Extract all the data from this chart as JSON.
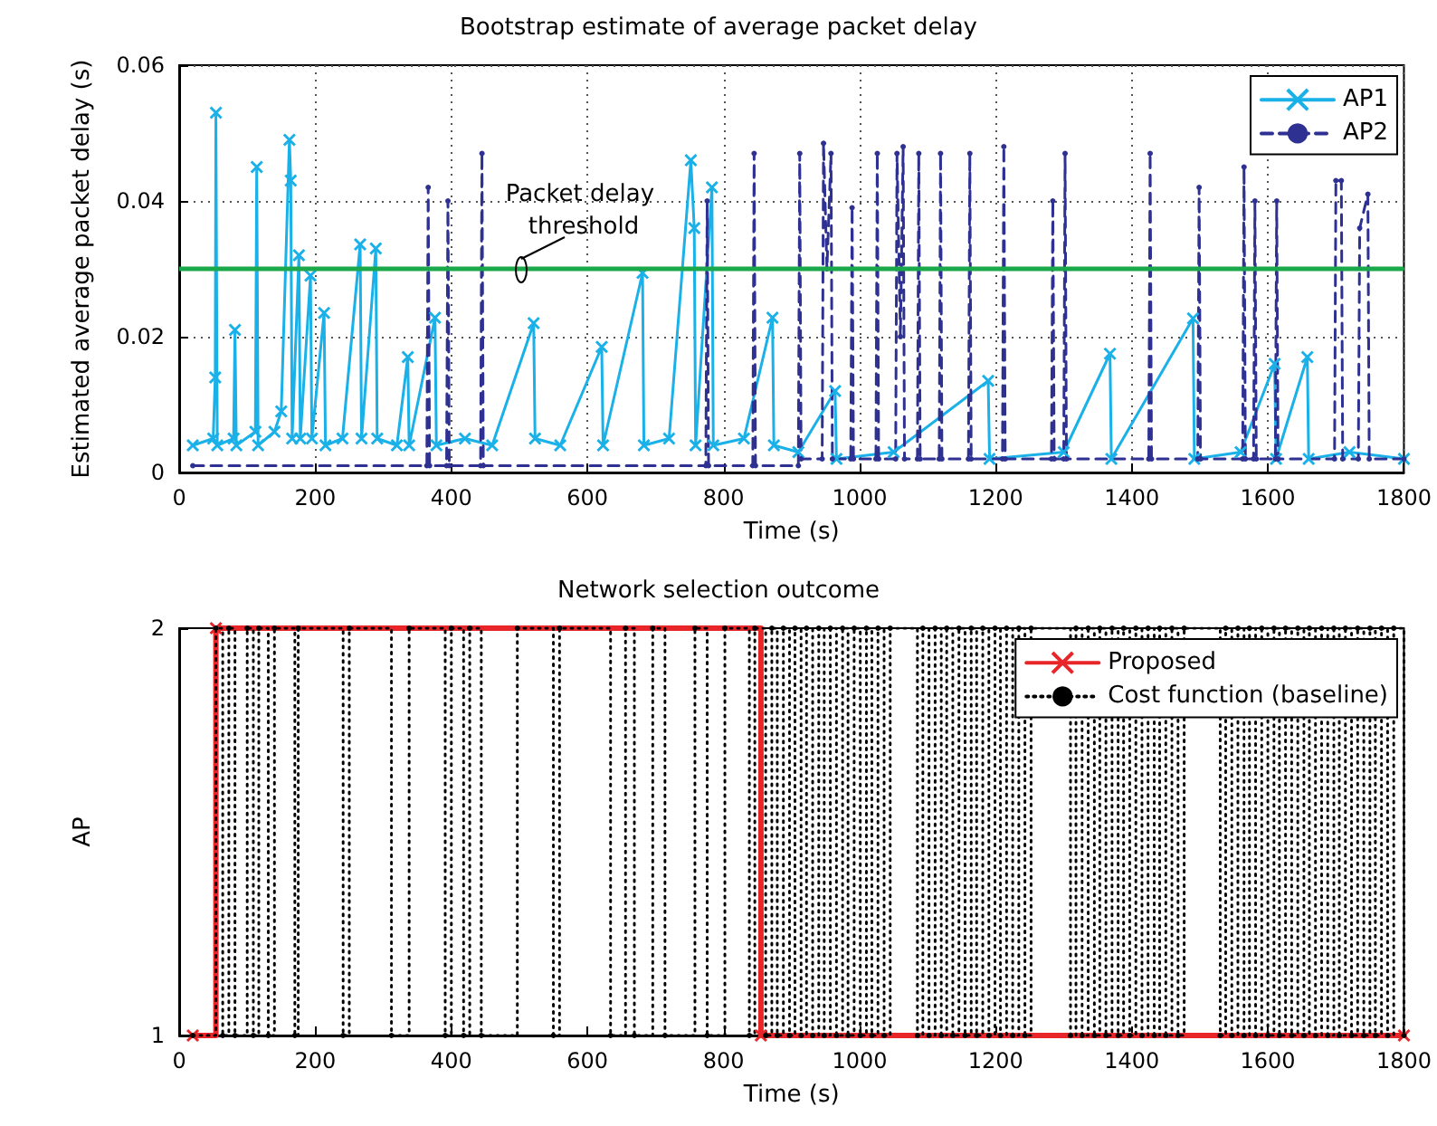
{
  "chart_data": [
    {
      "type": "line",
      "title": "Bootstrap estimate of average packet delay",
      "xlabel": "Time (s)",
      "ylabel": "Estimated average packet delay (s)",
      "xlim": [
        0,
        1800
      ],
      "xticks": [
        0,
        200,
        400,
        600,
        800,
        1000,
        1200,
        1400,
        1600,
        1800
      ],
      "ylim": [
        0,
        0.06
      ],
      "yticks": [
        0,
        0.02,
        0.04,
        0.06
      ],
      "grid": true,
      "legend": "top right",
      "ref_lines": [
        {
          "axis": "y",
          "value": 0.03,
          "label": "Packet delay threshold",
          "color": "#1aa84a"
        }
      ],
      "series": [
        {
          "name": "AP1",
          "color": "#1ab0e8",
          "marker": "cross",
          "line_style": "solid",
          "x": [
            20,
            50,
            53,
            54,
            56,
            80,
            82,
            84,
            112,
            114,
            116,
            140,
            150,
            162,
            164,
            166,
            176,
            178,
            193,
            195,
            213,
            215,
            240,
            266,
            268,
            289,
            291,
            320,
            336,
            338,
            376,
            378,
            420,
            460,
            521,
            523,
            560,
            621,
            623,
            681,
            683,
            720,
            752,
            757,
            759,
            783,
            785,
            830,
            872,
            874,
            910,
            964,
            966,
            1050,
            1189,
            1191,
            1300,
            1368,
            1370,
            1490,
            1492,
            1560,
            1610,
            1612,
            1658,
            1660,
            1720,
            1800
          ],
          "values": [
            0.004,
            0.005,
            0.014,
            0.053,
            0.004,
            0.005,
            0.021,
            0.004,
            0.006,
            0.045,
            0.004,
            0.006,
            0.009,
            0.049,
            0.043,
            0.005,
            0.032,
            0.005,
            0.029,
            0.005,
            0.0235,
            0.004,
            0.005,
            0.0336,
            0.005,
            0.033,
            0.005,
            0.004,
            0.017,
            0.004,
            0.0228,
            0.004,
            0.005,
            0.004,
            0.022,
            0.005,
            0.004,
            0.0185,
            0.004,
            0.0294,
            0.004,
            0.005,
            0.046,
            0.036,
            0.004,
            0.042,
            0.004,
            0.005,
            0.0228,
            0.004,
            0.003,
            0.012,
            0.002,
            0.003,
            0.0135,
            0.002,
            0.003,
            0.0175,
            0.002,
            0.0227,
            0.002,
            0.003,
            0.016,
            0.002,
            0.017,
            0.002,
            0.003,
            0.002
          ]
        },
        {
          "name": "AP2",
          "color": "#2e3192",
          "marker": "circle",
          "line_style": "dashed",
          "x": [
            20,
            364,
            366,
            368,
            393,
            395,
            397,
            443,
            445,
            447,
            774,
            776,
            778,
            843,
            845,
            847,
            910,
            912,
            914,
            945,
            947,
            952,
            958,
            960,
            987,
            989,
            991,
            1024,
            1026,
            1028,
            1053,
            1055,
            1060,
            1064,
            1066,
            1085,
            1087,
            1089,
            1117,
            1119,
            1121,
            1160,
            1162,
            1164,
            1210,
            1212,
            1214,
            1282,
            1284,
            1286,
            1300,
            1302,
            1304,
            1425,
            1427,
            1429,
            1497,
            1499,
            1501,
            1563,
            1565,
            1567,
            1579,
            1581,
            1583,
            1611,
            1613,
            1615,
            1698,
            1700,
            1708,
            1710,
            1733,
            1735,
            1747,
            1749,
            1800
          ],
          "values": [
            0.001,
            0.001,
            0.042,
            0.001,
            0.001,
            0.04,
            0.001,
            0.001,
            0.047,
            0.001,
            0.001,
            0.04,
            0.001,
            0.001,
            0.047,
            0.001,
            0.001,
            0.047,
            0.002,
            0.002,
            0.0485,
            0.03,
            0.047,
            0.002,
            0.002,
            0.039,
            0.002,
            0.002,
            0.047,
            0.002,
            0.002,
            0.047,
            0.02,
            0.048,
            0.002,
            0.002,
            0.047,
            0.002,
            0.002,
            0.047,
            0.002,
            0.002,
            0.047,
            0.002,
            0.002,
            0.048,
            0.002,
            0.002,
            0.04,
            0.002,
            0.002,
            0.047,
            0.002,
            0.002,
            0.047,
            0.002,
            0.002,
            0.042,
            0.002,
            0.002,
            0.045,
            0.002,
            0.002,
            0.04,
            0.002,
            0.002,
            0.04,
            0.002,
            0.002,
            0.043,
            0.043,
            0.002,
            0.002,
            0.036,
            0.041,
            0.002,
            0.002
          ]
        }
      ]
    },
    {
      "type": "step",
      "title": "Network selection outcome",
      "xlabel": "Time (s)",
      "ylabel": "AP",
      "xlim": [
        0,
        1800
      ],
      "xticks": [
        0,
        200,
        400,
        600,
        800,
        1000,
        1200,
        1400,
        1600,
        1800
      ],
      "ylim": [
        1,
        2
      ],
      "yticks": [
        1,
        2
      ],
      "grid": false,
      "legend": "top right",
      "series": [
        {
          "name": "Proposed",
          "color": "#e8262a",
          "marker": "cross",
          "line_style": "solid",
          "x": [
            20,
            54,
            855,
            1800
          ],
          "values": [
            1,
            2,
            1,
            1
          ]
        },
        {
          "name": "Cost function (baseline)",
          "color": "#000000",
          "marker": "circle",
          "line_style": "dotted",
          "x": [
            20,
            54,
            64,
            73,
            82,
            100,
            109,
            117,
            131,
            140,
            170,
            175,
            241,
            250,
            312,
            338,
            391,
            400,
            418,
            427,
            444,
            497,
            550,
            559,
            634,
            656,
            669,
            696,
            714,
            758,
            776,
            802,
            838,
            846,
            862,
            871,
            879,
            888,
            897,
            905,
            914,
            922,
            931,
            940,
            948,
            957,
            966,
            975,
            983,
            992,
            1001,
            1010,
            1018,
            1027,
            1036,
            1045,
            1085,
            1093,
            1102,
            1111,
            1120,
            1128,
            1137,
            1146,
            1155,
            1164,
            1172,
            1181,
            1190,
            1199,
            1207,
            1216,
            1225,
            1234,
            1243,
            1252,
            1310,
            1318,
            1327,
            1336,
            1345,
            1353,
            1362,
            1371,
            1380,
            1388,
            1397,
            1406,
            1415,
            1424,
            1433,
            1441,
            1450,
            1459,
            1468,
            1477,
            1530,
            1538,
            1547,
            1556,
            1565,
            1573,
            1582,
            1591,
            1600,
            1609,
            1617,
            1626,
            1635,
            1644,
            1653,
            1661,
            1670,
            1679,
            1688,
            1697,
            1705,
            1714,
            1723,
            1732,
            1741,
            1750,
            1758,
            1767,
            1776,
            1785,
            1800
          ],
          "values": [
            1,
            2,
            1,
            2,
            1,
            2,
            1,
            2,
            1,
            2,
            1,
            2,
            1,
            2,
            1,
            2,
            1,
            2,
            1,
            2,
            1,
            2,
            1,
            2,
            1,
            2,
            1,
            2,
            1,
            2,
            1,
            2,
            1,
            2,
            1,
            2,
            1,
            2,
            1,
            2,
            1,
            2,
            1,
            2,
            1,
            2,
            1,
            2,
            1,
            2,
            1,
            2,
            1,
            2,
            1,
            2,
            1,
            2,
            1,
            2,
            1,
            2,
            1,
            2,
            1,
            2,
            1,
            2,
            1,
            2,
            1,
            2,
            1,
            2,
            1,
            2,
            1,
            2,
            1,
            2,
            1,
            2,
            1,
            2,
            1,
            2,
            1,
            2,
            1,
            2,
            1,
            2,
            1,
            2,
            1,
            2,
            1,
            2,
            1,
            2,
            1,
            2,
            1,
            2,
            1,
            2,
            1,
            2,
            1,
            2,
            1,
            2,
            1,
            2,
            1,
            2,
            1,
            2,
            1,
            2,
            1,
            2,
            1,
            2,
            1,
            2,
            1
          ]
        }
      ]
    }
  ]
}
